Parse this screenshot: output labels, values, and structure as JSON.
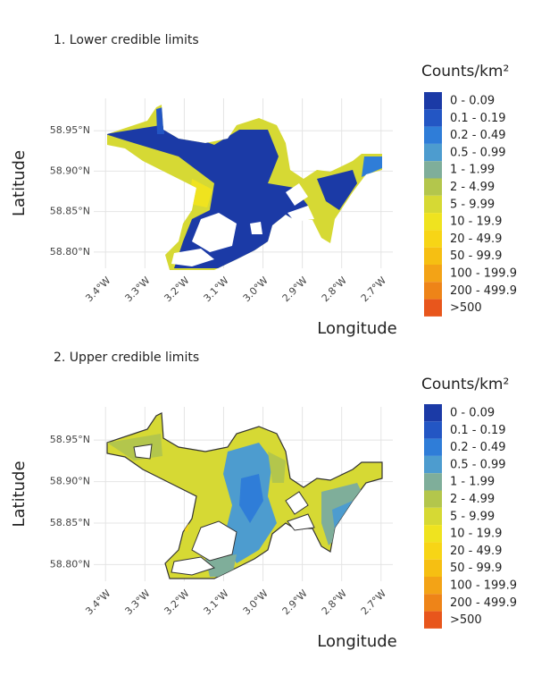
{
  "chart_data": [
    {
      "type": "map",
      "title": "1. Lower credible limits",
      "xlabel": "Longitude",
      "ylabel": "Latitude",
      "xlim": [
        -3.43,
        -2.67
      ],
      "ylim": [
        58.78,
        58.99
      ],
      "xticks": [
        {
          "value": -3.4,
          "label": "3.4°W"
        },
        {
          "value": -3.3,
          "label": "3.3°W"
        },
        {
          "value": -3.2,
          "label": "3.2°W"
        },
        {
          "value": -3.1,
          "label": "3.1°W"
        },
        {
          "value": -3.0,
          "label": "3.0°W"
        },
        {
          "value": -2.9,
          "label": "2.9°W"
        },
        {
          "value": -2.8,
          "label": "2.8°W"
        },
        {
          "value": -2.7,
          "label": "2.7°W"
        }
      ],
      "yticks": [
        {
          "value": 58.8,
          "label": "58.80°N"
        },
        {
          "value": 58.85,
          "label": "58.85°N"
        },
        {
          "value": 58.9,
          "label": "58.90°N"
        },
        {
          "value": 58.95,
          "label": "58.95°N"
        }
      ],
      "legend": {
        "title": "Counts/km²",
        "entries": [
          {
            "label": "0 - 0.09",
            "color": "#1b3aa6"
          },
          {
            "label": "0.1 - 0.19",
            "color": "#2356c4"
          },
          {
            "label": "0.2 - 0.49",
            "color": "#2f7dd8"
          },
          {
            "label": "0.5 - 0.99",
            "color": "#4d9ccf"
          },
          {
            "label": "1 - 1.99",
            "color": "#7fae9a"
          },
          {
            "label": "2 - 4.99",
            "color": "#b3c64c"
          },
          {
            "label": "5 - 9.99",
            "color": "#d6d934"
          },
          {
            "label": "10 - 19.9",
            "color": "#efe31f"
          },
          {
            "label": "20 - 49.9",
            "color": "#f7d516"
          },
          {
            "label": "50 - 99.9",
            "color": "#f6bf12"
          },
          {
            "label": "100 - 199.9",
            "color": "#f3a316"
          },
          {
            "label": "200 - 499.9",
            "color": "#ee8418"
          },
          {
            "label": ">500",
            "color": "#e8561c"
          }
        ]
      }
    },
    {
      "type": "map",
      "title": "2. Upper credible limits",
      "xlabel": "Longitude",
      "ylabel": "Latitude",
      "xlim": [
        -3.43,
        -2.67
      ],
      "ylim": [
        58.78,
        58.99
      ],
      "xticks": [
        {
          "value": -3.4,
          "label": "3.4°W"
        },
        {
          "value": -3.3,
          "label": "3.3°W"
        },
        {
          "value": -3.2,
          "label": "3.2°W"
        },
        {
          "value": -3.1,
          "label": "3.1°W"
        },
        {
          "value": -3.0,
          "label": "3.0°W"
        },
        {
          "value": -2.9,
          "label": "2.9°W"
        },
        {
          "value": -2.8,
          "label": "2.8°W"
        },
        {
          "value": -2.7,
          "label": "2.7°W"
        }
      ],
      "yticks": [
        {
          "value": 58.8,
          "label": "58.80°N"
        },
        {
          "value": 58.85,
          "label": "58.85°N"
        },
        {
          "value": 58.9,
          "label": "58.90°N"
        },
        {
          "value": 58.95,
          "label": "58.95°N"
        }
      ],
      "legend": {
        "title": "Counts/km²",
        "entries": [
          {
            "label": "0 - 0.09",
            "color": "#1b3aa6"
          },
          {
            "label": "0.1 - 0.19",
            "color": "#2356c4"
          },
          {
            "label": "0.2 - 0.49",
            "color": "#2f7dd8"
          },
          {
            "label": "0.5 - 0.99",
            "color": "#4d9ccf"
          },
          {
            "label": "1 - 1.99",
            "color": "#7fae9a"
          },
          {
            "label": "2 - 4.99",
            "color": "#b3c64c"
          },
          {
            "label": "5 - 9.99",
            "color": "#d6d934"
          },
          {
            "label": "10 - 19.9",
            "color": "#efe31f"
          },
          {
            "label": "20 - 49.9",
            "color": "#f7d516"
          },
          {
            "label": "50 - 99.9",
            "color": "#f6bf12"
          },
          {
            "label": "100 - 199.9",
            "color": "#f3a316"
          },
          {
            "label": "200 - 499.9",
            "color": "#ee8418"
          },
          {
            "label": ">500",
            "color": "#e8561c"
          }
        ]
      }
    }
  ]
}
